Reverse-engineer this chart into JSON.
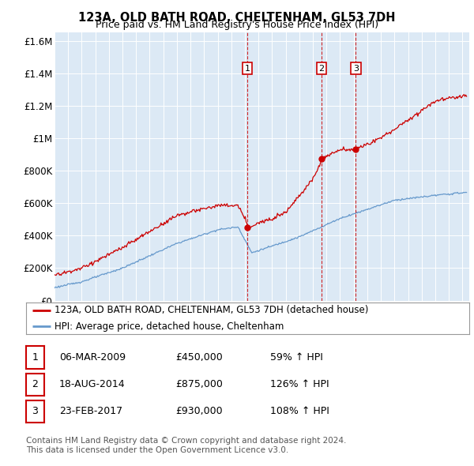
{
  "title": "123A, OLD BATH ROAD, CHELTENHAM, GL53 7DH",
  "subtitle": "Price paid vs. HM Land Registry's House Price Index (HPI)",
  "ylim": [
    0,
    1650000
  ],
  "yticks": [
    0,
    200000,
    400000,
    600000,
    800000,
    1000000,
    1200000,
    1400000,
    1600000
  ],
  "ytick_labels": [
    "£0",
    "£200K",
    "£400K",
    "£600K",
    "£800K",
    "£1M",
    "£1.2M",
    "£1.4M",
    "£1.6M"
  ],
  "xlim_start": 1995.0,
  "xlim_end": 2025.5,
  "background_color": "#ffffff",
  "plot_bg_color": "#dce9f5",
  "grid_color": "#ffffff",
  "red_line_color": "#cc0000",
  "blue_line_color": "#6699cc",
  "vline_color": "#cc0000",
  "sale_dates": [
    2009.18,
    2014.63,
    2017.15
  ],
  "sale_labels": [
    "1",
    "2",
    "3"
  ],
  "sale_prices": [
    450000,
    875000,
    930000
  ],
  "legend_entries": [
    "123A, OLD BATH ROAD, CHELTENHAM, GL53 7DH (detached house)",
    "HPI: Average price, detached house, Cheltenham"
  ],
  "table_data": [
    [
      "1",
      "06-MAR-2009",
      "£450,000",
      "59% ↑ HPI"
    ],
    [
      "2",
      "18-AUG-2014",
      "£875,000",
      "126% ↑ HPI"
    ],
    [
      "3",
      "23-FEB-2017",
      "£930,000",
      "108% ↑ HPI"
    ]
  ],
  "footnote": "Contains HM Land Registry data © Crown copyright and database right 2024.\nThis data is licensed under the Open Government Licence v3.0."
}
